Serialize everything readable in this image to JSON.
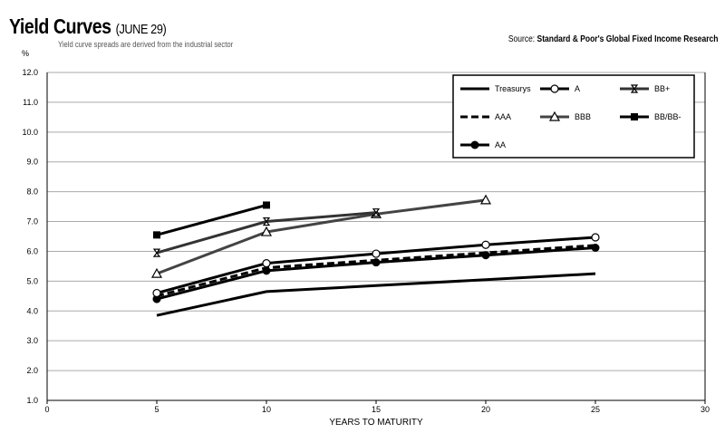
{
  "chart_data": {
    "type": "line",
    "title": "Yield Curves",
    "title_date": "(JUNE 29)",
    "subtitle": "Yield curve spreads are derived from the industrial sector",
    "source_label": "Source:",
    "source": "Standard & Poor's Global Fixed Income Research",
    "ylabel": "%",
    "xlabel": "YEARS TO MATURITY",
    "xlim": [
      0,
      30
    ],
    "ylim": [
      1,
      12
    ],
    "xticks": [
      "0",
      "5",
      "10",
      "15",
      "20",
      "25",
      "30"
    ],
    "yticks": [
      "1.0",
      "2.0",
      "3.0",
      "4.0",
      "5.0",
      "6.0",
      "7.0",
      "8.0",
      "9.0",
      "10.0",
      "11.0",
      "12.0"
    ],
    "grid": true,
    "legend_position": "top-right",
    "series": [
      {
        "name": "Treasurys",
        "marker": "none",
        "style": "solid",
        "color": "#000000",
        "x": [
          5,
          10,
          15,
          20,
          25
        ],
        "values": [
          3.85,
          4.65,
          4.85,
          5.05,
          5.25
        ]
      },
      {
        "name": "AAA",
        "marker": "none",
        "style": "dashed",
        "color": "#000000",
        "x": [
          5,
          10,
          15,
          20,
          25
        ],
        "values": [
          4.5,
          5.45,
          5.7,
          5.95,
          6.2
        ]
      },
      {
        "name": "AA",
        "marker": "filled-circle",
        "style": "solid",
        "color": "#000000",
        "x": [
          5,
          10,
          15,
          20,
          25
        ],
        "values": [
          4.4,
          5.35,
          5.63,
          5.87,
          6.12
        ]
      },
      {
        "name": "A",
        "marker": "open-circle",
        "style": "solid",
        "color": "#000000",
        "x": [
          5,
          10,
          15,
          20,
          25
        ],
        "values": [
          4.6,
          5.6,
          5.92,
          6.22,
          6.47
        ]
      },
      {
        "name": "BBB",
        "marker": "open-triangle",
        "style": "solid",
        "color": "#444444",
        "x": [
          5,
          10,
          15,
          20
        ],
        "values": [
          5.25,
          6.65,
          7.25,
          7.72
        ]
      },
      {
        "name": "BB+",
        "marker": "hourglass",
        "style": "solid",
        "color": "#333333",
        "x": [
          5,
          10,
          15
        ],
        "values": [
          5.95,
          7.0,
          7.3
        ]
      },
      {
        "name": "BB/BB-",
        "marker": "filled-square",
        "style": "solid",
        "color": "#000000",
        "x": [
          5,
          10
        ],
        "values": [
          6.55,
          7.55
        ]
      }
    ]
  }
}
